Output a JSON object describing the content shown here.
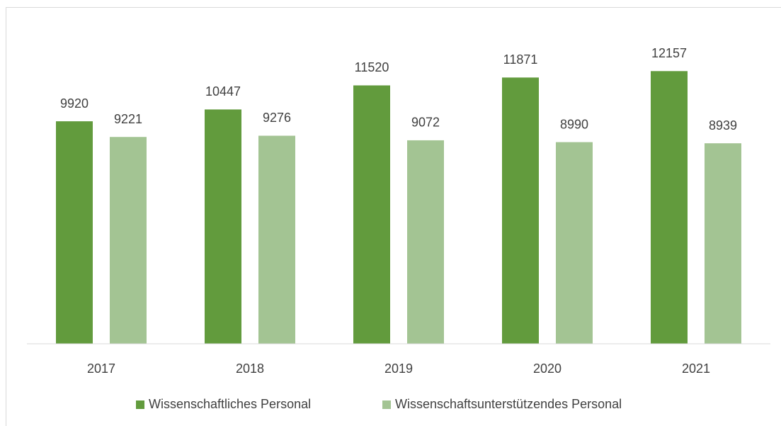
{
  "chart_data": {
    "type": "bar",
    "categories": [
      "2017",
      "2018",
      "2019",
      "2020",
      "2021"
    ],
    "series": [
      {
        "name": "Wissenschaftliches Personal",
        "color": "#629b3d",
        "values": [
          9920,
          10447,
          11520,
          11871,
          12157
        ]
      },
      {
        "name": "Wissenschaftsunterstützendes Personal",
        "color": "#a3c493",
        "values": [
          9221,
          9276,
          9072,
          8990,
          8939
        ]
      }
    ],
    "ylim": [
      0,
      14000
    ],
    "grid": false,
    "legend": "bottom"
  }
}
